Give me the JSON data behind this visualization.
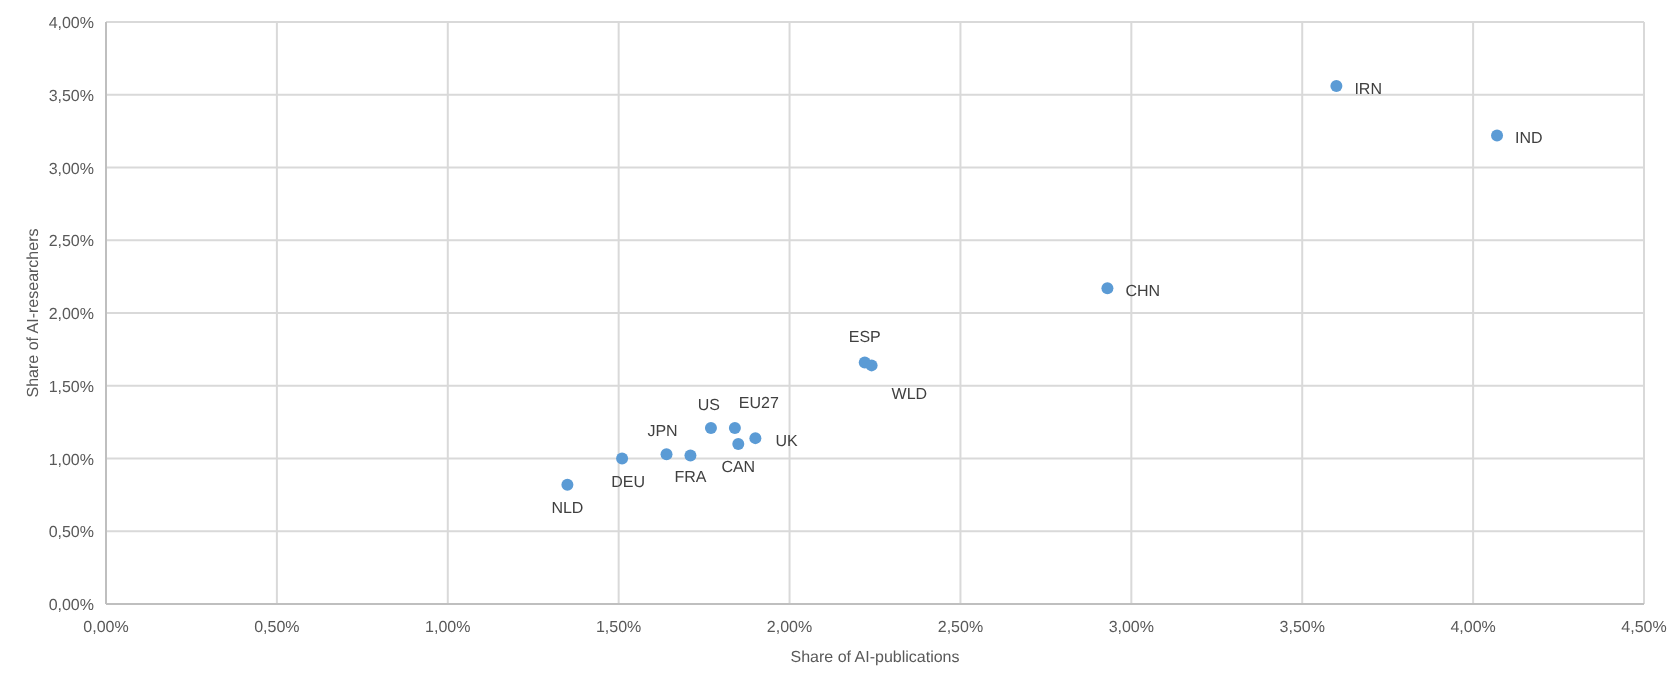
{
  "chart_data": {
    "type": "scatter",
    "xlabel": "Share of AI-publications",
    "ylabel": "Share of AI-researchers",
    "x": [
      1.35,
      1.51,
      1.64,
      1.71,
      1.77,
      1.84,
      1.85,
      1.9,
      2.22,
      2.24,
      2.93,
      3.6,
      4.07
    ],
    "series": [
      {
        "color": "#5b9bd5",
        "values": [
          0.82,
          1.0,
          1.03,
          1.02,
          1.21,
          1.21,
          1.1,
          1.14,
          1.66,
          1.64,
          2.17,
          3.56,
          3.22
        ]
      }
    ],
    "annotations": [
      {
        "text": "NLD",
        "x": 1.35,
        "y": 0.82
      },
      {
        "text": "DEU",
        "x": 1.51,
        "y": 1.0
      },
      {
        "text": "JPN",
        "x": 1.64,
        "y": 1.03
      },
      {
        "text": "FRA",
        "x": 1.71,
        "y": 1.02
      },
      {
        "text": "US",
        "x": 1.77,
        "y": 1.21
      },
      {
        "text": "EU27",
        "x": 1.84,
        "y": 1.21
      },
      {
        "text": "CAN",
        "x": 1.85,
        "y": 1.1
      },
      {
        "text": "UK",
        "x": 1.9,
        "y": 1.14
      },
      {
        "text": "ESP",
        "x": 2.22,
        "y": 1.66
      },
      {
        "text": "WLD",
        "x": 2.24,
        "y": 1.64
      },
      {
        "text": "CHN",
        "x": 2.93,
        "y": 2.17
      },
      {
        "text": "IRN",
        "x": 3.6,
        "y": 3.56
      },
      {
        "text": "IND",
        "x": 4.07,
        "y": 3.22
      }
    ],
    "xlim": [
      0,
      4.5
    ],
    "xticks": [
      {
        "value": 0,
        "label": "0,00%"
      },
      {
        "value": 0.5,
        "label": "0,50%"
      },
      {
        "value": 1,
        "label": "1,00%"
      },
      {
        "value": 1.5,
        "label": "1,50%"
      },
      {
        "value": 2,
        "label": "2,00%"
      },
      {
        "value": 2.5,
        "label": "2,50%"
      },
      {
        "value": 3,
        "label": "3,00%"
      },
      {
        "value": 3.5,
        "label": "3,50%"
      },
      {
        "value": 4,
        "label": "4,00%"
      },
      {
        "value": 4.5,
        "label": "4,50%"
      }
    ],
    "ylim": [
      0,
      4
    ],
    "yticks": [
      {
        "value": 0,
        "label": "0,00%"
      },
      {
        "value": 0.5,
        "label": "0,50%"
      },
      {
        "value": 1,
        "label": "1,00%"
      },
      {
        "value": 1.5,
        "label": "1,50%"
      },
      {
        "value": 2,
        "label": "2,00%"
      },
      {
        "value": 2.5,
        "label": "2,50%"
      },
      {
        "value": 3,
        "label": "3,00%"
      },
      {
        "value": 3.5,
        "label": "3,50%"
      },
      {
        "value": 4,
        "label": "4,00%"
      }
    ],
    "grid": true,
    "marker": "circle"
  }
}
